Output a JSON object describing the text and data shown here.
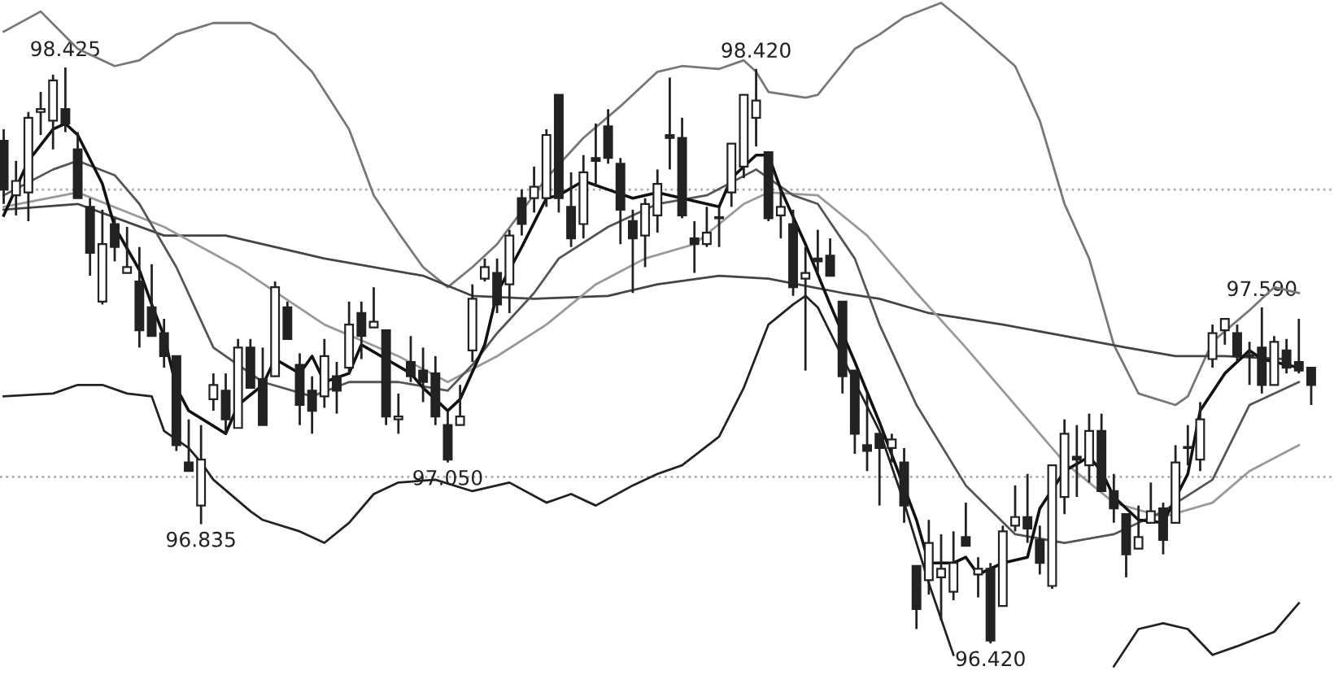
{
  "chart_data": {
    "type": "candlestick",
    "categories": [
      null,
      null,
      null,
      null,
      null,
      null,
      null,
      null,
      null,
      null,
      null,
      null,
      null,
      null,
      null,
      null,
      null,
      null,
      null,
      null,
      null,
      null,
      null,
      null,
      null,
      null,
      null,
      null,
      null,
      null,
      null,
      null,
      null,
      null,
      null,
      null,
      null,
      null,
      null,
      null,
      null,
      null,
      null,
      null,
      null,
      null,
      null,
      null,
      null,
      null,
      null,
      null,
      null,
      null,
      null,
      null,
      null,
      null,
      null,
      null,
      null,
      null,
      null,
      null,
      null,
      null,
      null,
      null,
      null,
      null,
      null,
      null,
      null,
      null,
      null,
      null,
      null,
      null,
      null,
      null,
      null,
      null,
      null,
      null,
      null,
      null,
      null,
      null,
      null,
      null,
      null,
      null,
      null,
      null,
      null,
      null,
      null,
      null,
      null,
      null,
      null,
      null,
      null,
      null,
      null,
      null,
      null
    ],
    "color": "#222222",
    "ohlc": [
      [
        98.17,
        98.21,
        97.95,
        98.0
      ],
      [
        97.98,
        98.1,
        97.91,
        98.03
      ],
      [
        97.99,
        98.27,
        97.89,
        98.25
      ],
      [
        98.27,
        98.34,
        98.19,
        98.28
      ],
      [
        98.24,
        98.4,
        98.14,
        98.38
      ],
      [
        98.28,
        98.425,
        98.2,
        98.23
      ],
      [
        98.14,
        98.2,
        97.97,
        97.97
      ],
      [
        97.94,
        97.97,
        97.7,
        97.78
      ],
      [
        97.61,
        97.93,
        97.6,
        97.81
      ],
      [
        97.88,
        97.9,
        97.75,
        97.8
      ],
      [
        97.71,
        97.87,
        97.71,
        97.73
      ],
      [
        97.68,
        97.8,
        97.45,
        97.51
      ],
      [
        97.59,
        97.74,
        97.49,
        97.49
      ],
      [
        97.5,
        97.55,
        97.38,
        97.42
      ],
      [
        97.42,
        97.42,
        97.09,
        97.11
      ],
      [
        97.05,
        97.2,
        97.02,
        97.02
      ],
      [
        96.9,
        97.18,
        96.835,
        97.06
      ],
      [
        97.27,
        97.36,
        97.23,
        97.32
      ],
      [
        97.3,
        97.36,
        97.15,
        97.2
      ],
      [
        97.17,
        97.48,
        97.17,
        97.45
      ],
      [
        97.45,
        97.48,
        97.31,
        97.31
      ],
      [
        97.34,
        97.45,
        97.18,
        97.18
      ],
      [
        97.35,
        97.68,
        97.35,
        97.66
      ],
      [
        97.59,
        97.61,
        97.48,
        97.48
      ],
      [
        97.39,
        97.43,
        97.18,
        97.25
      ],
      [
        97.3,
        97.35,
        97.15,
        97.23
      ],
      [
        97.28,
        97.48,
        97.24,
        97.42
      ],
      [
        97.35,
        97.4,
        97.22,
        97.3
      ],
      [
        97.38,
        97.61,
        97.36,
        97.53
      ],
      [
        97.57,
        97.61,
        97.41,
        97.49
      ],
      [
        97.52,
        97.66,
        97.52,
        97.54
      ],
      [
        97.51,
        97.51,
        97.18,
        97.21
      ],
      [
        97.2,
        97.29,
        97.15,
        97.21
      ],
      [
        97.4,
        97.49,
        97.33,
        97.35
      ],
      [
        97.37,
        97.45,
        97.26,
        97.33
      ],
      [
        97.36,
        97.42,
        97.18,
        97.21
      ],
      [
        97.18,
        97.23,
        97.05,
        97.06
      ],
      [
        97.18,
        97.32,
        97.18,
        97.21
      ],
      [
        97.44,
        97.67,
        97.4,
        97.62
      ],
      [
        97.69,
        97.76,
        97.68,
        97.73
      ],
      [
        97.71,
        97.76,
        97.57,
        97.6
      ],
      [
        97.67,
        97.86,
        97.57,
        97.84
      ],
      [
        97.97,
        98.0,
        97.84,
        97.88
      ],
      [
        97.97,
        98.08,
        97.92,
        98.01
      ],
      [
        97.97,
        98.21,
        97.94,
        98.19
      ],
      [
        98.33,
        98.33,
        97.92,
        97.97
      ],
      [
        97.94,
        98.06,
        97.8,
        97.83
      ],
      [
        97.88,
        98.12,
        97.83,
        98.06
      ],
      [
        98.11,
        98.23,
        98.01,
        98.1
      ],
      [
        98.22,
        98.28,
        98.09,
        98.11
      ],
      [
        98.09,
        98.11,
        97.81,
        97.93
      ],
      [
        97.89,
        97.93,
        97.64,
        97.83
      ],
      [
        97.84,
        97.97,
        97.73,
        97.95
      ],
      [
        97.91,
        98.07,
        97.85,
        98.02
      ],
      [
        98.19,
        98.39,
        98.07,
        98.18
      ],
      [
        98.18,
        98.25,
        97.9,
        97.91
      ],
      [
        97.83,
        97.89,
        97.71,
        97.81
      ],
      [
        97.81,
        97.94,
        97.8,
        97.85
      ],
      [
        97.9,
        97.94,
        97.8,
        97.9
      ],
      [
        97.99,
        98.16,
        97.94,
        98.16
      ],
      [
        98.08,
        98.33,
        98.04,
        98.33
      ],
      [
        98.25,
        98.42,
        98.15,
        98.31
      ],
      [
        98.13,
        98.13,
        97.89,
        97.9
      ],
      [
        97.91,
        98.0,
        97.83,
        97.94
      ],
      [
        97.88,
        97.93,
        97.63,
        97.66
      ],
      [
        97.69,
        97.8,
        97.37,
        97.71
      ],
      [
        97.76,
        97.86,
        97.71,
        97.75
      ],
      [
        97.77,
        97.83,
        97.7,
        97.7
      ],
      [
        97.61,
        97.61,
        97.29,
        97.35
      ],
      [
        97.37,
        97.37,
        97.08,
        97.15
      ],
      [
        97.11,
        97.29,
        97.02,
        97.09
      ],
      [
        97.15,
        97.15,
        96.9,
        97.1
      ],
      [
        97.1,
        97.15,
        97.05,
        97.13
      ],
      [
        97.05,
        97.1,
        96.84,
        96.9
      ],
      [
        96.69,
        96.69,
        96.47,
        96.54
      ],
      [
        96.64,
        96.85,
        96.59,
        96.77
      ],
      [
        96.65,
        96.8,
        96.5,
        96.68
      ],
      [
        96.6,
        96.81,
        96.57,
        96.7
      ],
      [
        96.79,
        96.91,
        96.76,
        96.76
      ],
      [
        96.66,
        96.72,
        96.58,
        96.68
      ],
      [
        96.68,
        96.7,
        96.42,
        96.43
      ],
      [
        96.55,
        96.83,
        96.55,
        96.81
      ],
      [
        96.83,
        96.97,
        96.81,
        96.86
      ],
      [
        96.86,
        97.01,
        96.77,
        96.82
      ],
      [
        96.78,
        96.83,
        96.66,
        96.7
      ],
      [
        96.62,
        97.04,
        96.61,
        97.04
      ],
      [
        96.93,
        97.2,
        96.87,
        97.15
      ],
      [
        97.07,
        97.18,
        96.93,
        97.06
      ],
      [
        97.04,
        97.22,
        96.98,
        97.16
      ],
      [
        97.16,
        97.22,
        96.95,
        96.95
      ],
      [
        96.95,
        97.01,
        96.84,
        96.89
      ],
      [
        96.87,
        96.87,
        96.65,
        96.73
      ],
      [
        96.75,
        96.9,
        96.75,
        96.79
      ],
      [
        96.84,
        96.98,
        96.84,
        96.88
      ],
      [
        96.89,
        96.91,
        96.73,
        96.78
      ],
      [
        96.84,
        97.11,
        96.84,
        97.05
      ],
      [
        97.1,
        97.18,
        97.04,
        97.1
      ],
      [
        97.06,
        97.26,
        97.02,
        97.2
      ],
      [
        97.41,
        97.53,
        97.38,
        97.5
      ],
      [
        97.51,
        97.55,
        97.46,
        97.55
      ],
      [
        97.5,
        97.53,
        97.4,
        97.42
      ],
      [
        97.42,
        97.47,
        97.32,
        97.42
      ],
      [
        97.45,
        97.59,
        97.29,
        97.32
      ],
      [
        97.32,
        97.49,
        97.32,
        97.47
      ],
      [
        97.44,
        97.48,
        97.36,
        97.38
      ],
      [
        97.4,
        97.55,
        97.36,
        97.37
      ],
      [
        97.38,
        97.38,
        97.25,
        97.32
      ]
    ],
    "series": [
      {
        "type": "line",
        "color": "#777777",
        "values": [
          98.55,
          null,
          null,
          98.62,
          null,
          null,
          98.49,
          null,
          null,
          98.43,
          null,
          98.45,
          null,
          null,
          98.54,
          null,
          null,
          98.58,
          null,
          null,
          98.58,
          null,
          98.54,
          null,
          null,
          98.41,
          null,
          null,
          98.21,
          null,
          97.98,
          null,
          97.85,
          null,
          97.73,
          null,
          97.66,
          null,
          97.73,
          null,
          97.81,
          null,
          null,
          null,
          98.04,
          null,
          null,
          98.18,
          null,
          null,
          98.29,
          null,
          null,
          98.41,
          null,
          98.43,
          null,
          null,
          98.42,
          null,
          98.45,
          98.41,
          98.34,
          null,
          null,
          98.32,
          98.33,
          null,
          null,
          98.49,
          null,
          98.54,
          null,
          98.6,
          null,
          null,
          98.65,
          null,
          98.58,
          null,
          null,
          null,
          98.43,
          null,
          98.24,
          null,
          97.95,
          null,
          97.76,
          null,
          97.46,
          null,
          97.29,
          null,
          null,
          97.25,
          97.28,
          null,
          97.47,
          null,
          null,
          97.58,
          null,
          97.66,
          null,
          97.64,
          null
        ]
      },
      {
        "type": "line",
        "color": "#222222",
        "values": [
          97.28,
          null,
          null,
          null,
          97.29,
          null,
          97.32,
          null,
          97.32,
          null,
          97.29,
          null,
          97.28,
          97.16,
          null,
          97.1,
          97.05,
          96.99,
          null,
          null,
          96.88,
          96.85,
          null,
          null,
          96.81,
          null,
          96.77,
          null,
          96.84,
          null,
          96.94,
          null,
          96.98,
          null,
          null,
          96.99,
          null,
          null,
          96.95,
          null,
          null,
          96.98,
          null,
          null,
          96.91,
          null,
          96.94,
          null,
          96.9,
          null,
          null,
          96.97,
          null,
          97.01,
          null,
          97.04,
          null,
          null,
          97.14,
          null,
          97.31,
          null,
          97.53,
          null,
          97.6,
          97.63,
          97.59,
          null,
          null,
          97.33,
          null,
          97.16,
          null,
          96.91,
          null,
          96.63,
          null,
          96.38,
          null,
          null,
          null,
          null,
          null,
          null,
          null,
          null,
          null,
          null,
          null,
          null,
          null,
          null,
          null,
          null,
          null,
          null,
          null,
          null,
          null,
          null,
          null,
          null,
          null,
          null,
          null,
          null,
          null
        ]
      },
      {
        "type": "line",
        "color": "#222222",
        "values": [
          null,
          null,
          null,
          null,
          null,
          null,
          null,
          null,
          null,
          null,
          null,
          null,
          null,
          null,
          null,
          null,
          null,
          null,
          null,
          null,
          null,
          null,
          null,
          null,
          null,
          null,
          null,
          null,
          null,
          null,
          null,
          null,
          null,
          null,
          null,
          null,
          null,
          null,
          null,
          null,
          null,
          null,
          null,
          null,
          null,
          null,
          null,
          null,
          null,
          null,
          null,
          null,
          null,
          null,
          null,
          null,
          null,
          null,
          null,
          null,
          null,
          null,
          null,
          null,
          null,
          null,
          null,
          null,
          null,
          null,
          null,
          null,
          null,
          null,
          null,
          null,
          null,
          null,
          null,
          null,
          null,
          null,
          null,
          null,
          null,
          null,
          null,
          null,
          null,
          null,
          96.34,
          null,
          96.47,
          null,
          96.49,
          null,
          96.47,
          null,
          96.38,
          null,
          96.41,
          null,
          null,
          96.46,
          null,
          96.56,
          null
        ]
      },
      {
        "type": "line",
        "color": "#444444",
        "values": [
          97.93,
          null,
          null,
          null,
          null,
          null,
          97.95,
          null,
          null,
          null,
          null,
          null,
          null,
          97.84,
          null,
          null,
          null,
          null,
          97.84,
          null,
          null,
          null,
          null,
          null,
          null,
          null,
          97.76,
          null,
          null,
          null,
          null,
          null,
          null,
          null,
          97.7,
          null,
          null,
          null,
          97.63,
          null,
          null,
          null,
          null,
          97.62,
          null,
          null,
          null,
          null,
          null,
          97.63,
          null,
          null,
          null,
          97.67,
          null,
          null,
          null,
          null,
          97.7,
          null,
          null,
          null,
          97.69,
          null,
          null,
          null,
          null,
          null,
          97.64,
          null,
          null,
          97.62,
          null,
          null,
          null,
          97.57,
          null,
          null,
          null,
          null,
          null,
          97.53,
          null,
          null,
          null,
          null,
          97.49,
          null,
          null,
          null,
          null,
          97.45,
          null,
          null,
          null,
          97.42,
          null,
          null,
          null,
          97.42,
          null,
          null,
          null,
          null,
          97.41,
          null,
          null
        ]
      },
      {
        "type": "line",
        "color": "#999999",
        "values": [
          97.94,
          null,
          null,
          null,
          null,
          null,
          97.99,
          null,
          null,
          null,
          null,
          null,
          null,
          97.87,
          null,
          null,
          null,
          null,
          null,
          97.73,
          null,
          null,
          null,
          null,
          null,
          null,
          97.53,
          null,
          null,
          null,
          null,
          null,
          97.42,
          null,
          null,
          null,
          97.33,
          null,
          null,
          null,
          97.42,
          null,
          null,
          null,
          97.53,
          null,
          null,
          null,
          97.67,
          null,
          null,
          null,
          97.76,
          null,
          null,
          null,
          97.81,
          null,
          null,
          null,
          97.95,
          null,
          97.99,
          null,
          null,
          null,
          97.98,
          null,
          null,
          null,
          97.84,
          null,
          null,
          null,
          97.64,
          null,
          null,
          null,
          97.45,
          null,
          null,
          null,
          97.25,
          null,
          null,
          null,
          97.05,
          null,
          null,
          null,
          96.91,
          null,
          null,
          null,
          96.86,
          null,
          null,
          null,
          96.91,
          null,
          null,
          97.02,
          null,
          null,
          null,
          97.11,
          null
        ]
      },
      {
        "type": "line",
        "color": "#555555",
        "values": [
          97.98,
          null,
          null,
          null,
          98.07,
          null,
          98.1,
          null,
          null,
          98.05,
          null,
          97.95,
          null,
          null,
          97.73,
          null,
          null,
          97.45,
          null,
          null,
          null,
          97.33,
          null,
          null,
          null,
          97.28,
          null,
          null,
          97.33,
          null,
          null,
          null,
          97.33,
          null,
          null,
          null,
          97.3,
          null,
          97.39,
          null,
          97.5,
          null,
          null,
          97.64,
          null,
          97.76,
          null,
          null,
          null,
          97.87,
          null,
          null,
          null,
          97.95,
          null,
          null,
          null,
          97.98,
          null,
          null,
          null,
          98.07,
          null,
          null,
          97.98,
          null,
          97.95,
          null,
          null,
          97.76,
          null,
          97.53,
          null,
          null,
          97.25,
          null,
          null,
          null,
          96.97,
          null,
          null,
          null,
          96.8,
          null,
          null,
          null,
          96.77,
          null,
          null,
          null,
          96.8,
          null,
          null,
          null,
          96.88,
          null,
          null,
          null,
          96.99,
          null,
          null,
          97.25,
          null,
          null,
          null,
          97.33,
          null
        ]
      },
      {
        "type": "line",
        "color": "#111111",
        "values": [
          97.91,
          null,
          98.1,
          null,
          98.21,
          98.23,
          98.19,
          null,
          98.02,
          97.87,
          null,
          97.72,
          97.6,
          97.49,
          97.31,
          97.23,
          null,
          null,
          97.15,
          97.25,
          null,
          97.32,
          97.41,
          null,
          97.36,
          97.42,
          97.33,
          null,
          97.36,
          97.46,
          null,
          97.41,
          null,
          97.36,
          97.31,
          null,
          97.23,
          97.27,
          null,
          97.46,
          97.64,
          null,
          97.8,
          null,
          97.97,
          97.98,
          null,
          98.03,
          null,
          98.0,
          null,
          97.97,
          null,
          97.99,
          null,
          97.97,
          null,
          null,
          97.94,
          98.04,
          null,
          98.12,
          98.12,
          98.0,
          null,
          97.81,
          null,
          97.6,
          null,
          97.4,
          null,
          97.19,
          null,
          null,
          96.85,
          96.7,
          null,
          96.7,
          96.72,
          96.66,
          null,
          96.7,
          null,
          96.72,
          96.89,
          null,
          97.02,
          null,
          97.07,
          97.02,
          96.93,
          null,
          96.85,
          null,
          96.84,
          null,
          97.01,
          97.23,
          null,
          97.36,
          null,
          97.44,
          97.41,
          null,
          null,
          97.38,
          null
        ]
      }
    ],
    "ylim": [
      96.31,
      98.66
    ],
    "line_style": "solid",
    "ref_lines": [
      {
        "axis": "y",
        "value": 98.0,
        "color": "#aaaaaa",
        "line_style": "dotted"
      },
      {
        "axis": "y",
        "value": 97.0,
        "color": "#aaaaaa",
        "line_style": "dotted"
      }
    ],
    "annotations": [
      {
        "text": "98.425",
        "y": 98.425
      },
      {
        "text": "96.835",
        "y": 96.835
      },
      {
        "text": "97.050",
        "y": 97.05
      },
      {
        "text": "98.420",
        "y": 98.42
      },
      {
        "text": "96.420",
        "y": 96.42
      },
      {
        "text": "97.590",
        "y": 97.59
      }
    ]
  }
}
